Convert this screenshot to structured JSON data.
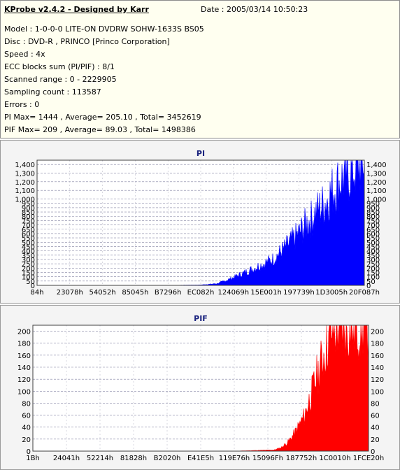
{
  "info": {
    "title": "KProbe v2.4.2 - Designed by Karr",
    "date": "Date : 2005/03/14 10:50:23",
    "lines": [
      "Model : 1-0-0-0 LITE-ON DVDRW SOHW-1633S BS05",
      "Disc : DVD-R , PRINCO [Princo Corporation]",
      "Speed : 4x",
      "ECC blocks sum (PI/PIF) : 8/1",
      "Scanned range : 0 - 2229905",
      "Sampling count : 113587",
      "Errors : 0",
      "PI Max= 1444 , Average= 205.10 , Total= 3452619",
      "PIF Max= 209 , Average= 89.03 , Total= 1498386"
    ]
  },
  "chart_data": [
    {
      "type": "area",
      "title": "PI",
      "color": "#0000ff",
      "ylim": [
        0,
        1450
      ],
      "yticks": [
        0,
        50,
        100,
        150,
        200,
        250,
        300,
        350,
        400,
        450,
        500,
        550,
        600,
        650,
        700,
        750,
        800,
        850,
        900,
        950,
        1000,
        1100,
        1200,
        1300,
        1400
      ],
      "ytick_labels": [
        "0",
        "50",
        "100",
        "150",
        "200",
        "250",
        "300",
        "350",
        "400",
        "450",
        "500",
        "550",
        "600",
        "650",
        "700",
        "750",
        "800",
        "850",
        "900",
        "950",
        "1,000",
        "1,100",
        "1,200",
        "1,300",
        "1,400"
      ],
      "xtick_labels": [
        "84h",
        "23078h",
        "54052h",
        "85045h",
        "B7296h",
        "EC082h",
        "124069h",
        "15E001h",
        "197739h",
        "1D3005h",
        "20F087h"
      ],
      "x": [
        0.0,
        0.4,
        0.5,
        0.55,
        0.58,
        0.6,
        0.63,
        0.66,
        0.68,
        0.7,
        0.72,
        0.74,
        0.76,
        0.78,
        0.8,
        0.82,
        0.84,
        0.86,
        0.88,
        0.9,
        0.92,
        0.94,
        0.96,
        0.98,
        1.0
      ],
      "values": [
        0,
        0,
        5,
        20,
        60,
        90,
        140,
        190,
        230,
        260,
        300,
        370,
        440,
        520,
        600,
        700,
        780,
        880,
        960,
        1080,
        1180,
        1260,
        1320,
        1390,
        1444
      ]
    },
    {
      "type": "area",
      "title": "PIF",
      "color": "#ff0000",
      "ylim": [
        0,
        210
      ],
      "yticks": [
        0,
        20,
        40,
        60,
        80,
        100,
        120,
        140,
        160,
        180,
        200
      ],
      "ytick_labels": [
        "0",
        "20",
        "40",
        "60",
        "80",
        "100",
        "120",
        "140",
        "160",
        "180",
        "200"
      ],
      "xtick_labels": [
        "1Bh",
        "24041h",
        "52214h",
        "81828h",
        "B2020h",
        "E41E5h",
        "119E76h",
        "15096Fh",
        "187752h",
        "1C0010h",
        "1FCE20h"
      ],
      "x": [
        0.0,
        0.6,
        0.72,
        0.74,
        0.76,
        0.78,
        0.8,
        0.81,
        0.82,
        0.83,
        0.84,
        0.85,
        0.86,
        0.87,
        0.88,
        0.89,
        0.9,
        0.91,
        0.92,
        0.94,
        1.0
      ],
      "values": [
        0,
        0,
        2,
        6,
        15,
        30,
        50,
        60,
        80,
        95,
        115,
        130,
        150,
        170,
        185,
        200,
        205,
        209,
        209,
        209,
        209
      ]
    }
  ]
}
